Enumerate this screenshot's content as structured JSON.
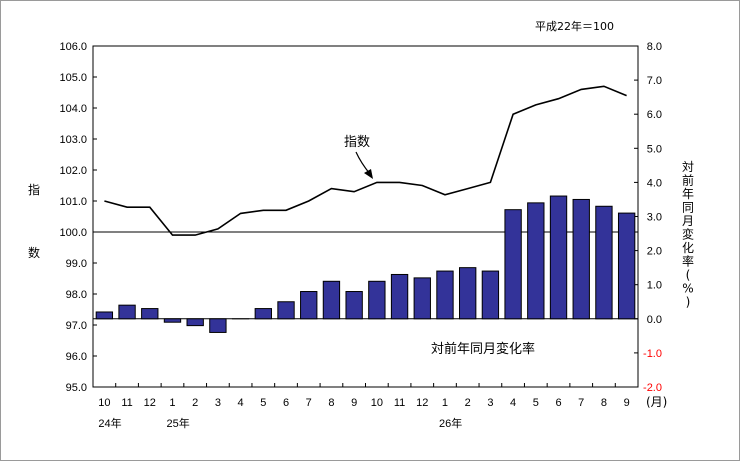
{
  "note": "平成22年＝100",
  "left_axis_label": [
    "指",
    "数"
  ],
  "right_axis_label": [
    "対",
    "前",
    "年",
    "同",
    "月",
    "変",
    "化",
    "率",
    "(",
    "%",
    ")"
  ],
  "month_unit": "(月)",
  "year_labels": [
    "24年",
    "25年",
    "26年"
  ],
  "index_annotation": "指数",
  "change_annotation": "対前年同月変化率",
  "colors": {
    "bar": "#333399",
    "line": "#000000",
    "negative_tick": "#ff0000"
  },
  "chart_data": {
    "type": "bar+line",
    "categories": [
      "10",
      "11",
      "12",
      "1",
      "2",
      "3",
      "4",
      "5",
      "6",
      "7",
      "8",
      "9",
      "10",
      "11",
      "12",
      "1",
      "2",
      "3",
      "4",
      "5",
      "6",
      "7",
      "8",
      "9"
    ],
    "series": [
      {
        "name": "指数",
        "type": "line",
        "axis": "left",
        "values": [
          101.0,
          100.8,
          100.8,
          99.9,
          99.9,
          100.1,
          100.6,
          100.7,
          100.7,
          101.0,
          101.4,
          101.3,
          101.6,
          101.6,
          101.5,
          101.2,
          101.4,
          101.6,
          103.8,
          104.1,
          104.3,
          104.6,
          104.7,
          104.4
        ]
      },
      {
        "name": "対前年同月変化率",
        "type": "bar",
        "axis": "right",
        "values": [
          0.2,
          0.4,
          0.3,
          -0.1,
          -0.2,
          -0.4,
          0.0,
          0.3,
          0.5,
          0.8,
          1.1,
          0.8,
          1.1,
          1.3,
          1.2,
          1.4,
          1.5,
          1.4,
          3.2,
          3.4,
          3.6,
          3.5,
          3.3,
          3.1
        ]
      }
    ],
    "y_left": {
      "min": 95.0,
      "max": 106.0,
      "step": 1.0,
      "ticks": [
        "95.0",
        "96.0",
        "97.0",
        "98.0",
        "99.0",
        "100.0",
        "101.0",
        "102.0",
        "103.0",
        "104.0",
        "105.0",
        "106.0"
      ]
    },
    "y_right": {
      "min": -2.0,
      "max": 8.0,
      "step": 1.0,
      "ticks": [
        "-2.0",
        "-1.0",
        "0.0",
        "1.0",
        "2.0",
        "3.0",
        "4.0",
        "5.0",
        "6.0",
        "7.0",
        "8.0"
      ]
    }
  }
}
